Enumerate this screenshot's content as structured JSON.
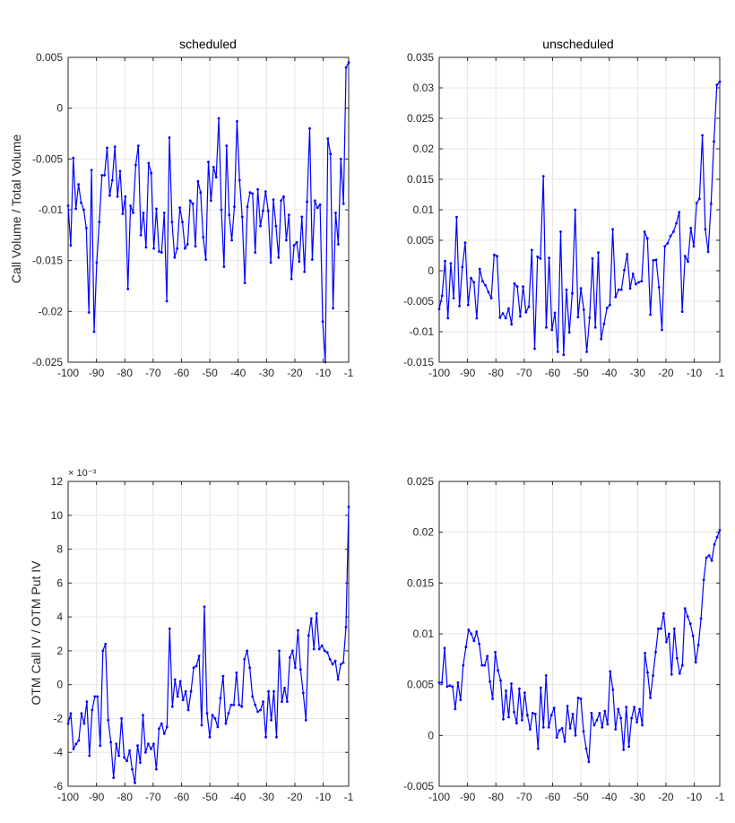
{
  "colors": {
    "series": "#0000ff",
    "grid": "#e6e6e6",
    "axis": "#262626"
  },
  "panels": [
    {
      "title": "scheduled",
      "ylabel": "Call Volume / Total Volume",
      "exponent": ""
    },
    {
      "title": "unscheduled",
      "ylabel": "",
      "exponent": ""
    },
    {
      "title": "",
      "ylabel": "OTM Call IV / OTM Put IV",
      "exponent": "× 10⁻³"
    },
    {
      "title": "",
      "ylabel": "",
      "exponent": ""
    }
  ],
  "chart_data": [
    {
      "type": "line",
      "title": "scheduled",
      "xlabel": "",
      "ylabel": "Call Volume / Total Volume",
      "xlim": [
        -100,
        -1
      ],
      "ylim": [
        -0.025,
        0.005
      ],
      "grid": true,
      "x_ticks": [
        -100,
        -90,
        -80,
        -70,
        -60,
        -50,
        -40,
        -30,
        -20,
        -10,
        -1
      ],
      "x_tick_labels": [
        "-100",
        "-90",
        "-80",
        "-70",
        "-60",
        "-50",
        "-40",
        "-30",
        "-20",
        "-10",
        "-1"
      ],
      "y_ticks": [
        0.005,
        0,
        -0.005,
        -0.01,
        -0.015,
        -0.02,
        -0.025
      ],
      "y_tick_labels": [
        "0.005",
        "0",
        "-0.005",
        "-0.01",
        "-0.015",
        "-0.02",
        "-0.025"
      ],
      "x_start": -100,
      "values": [
        -0.0096,
        -0.0135,
        -0.0049,
        -0.0099,
        -0.0075,
        -0.0093,
        -0.01,
        -0.0118,
        -0.0201,
        -0.0061,
        -0.022,
        -0.0152,
        -0.0112,
        -0.0066,
        -0.0066,
        -0.0039,
        -0.0086,
        -0.0071,
        -0.0038,
        -0.0087,
        -0.0062,
        -0.0104,
        -0.0087,
        -0.0178,
        -0.0096,
        -0.0103,
        -0.0056,
        -0.0037,
        -0.0125,
        -0.0103,
        -0.0137,
        -0.0054,
        -0.0064,
        -0.0138,
        -0.0099,
        -0.0141,
        -0.0142,
        -0.0103,
        -0.019,
        -0.0029,
        -0.0112,
        -0.0147,
        -0.0138,
        -0.0098,
        -0.0112,
        -0.0138,
        -0.0134,
        -0.0091,
        -0.0094,
        -0.0136,
        -0.0072,
        -0.0083,
        -0.0127,
        -0.0149,
        -0.0053,
        -0.0091,
        -0.0058,
        -0.0068,
        -0.001,
        -0.01,
        -0.0156,
        -0.0037,
        -0.0105,
        -0.013,
        -0.0097,
        -0.0013,
        -0.0071,
        -0.0107,
        -0.0172,
        -0.0097,
        -0.0083,
        -0.0084,
        -0.0142,
        -0.008,
        -0.0116,
        -0.0101,
        -0.0082,
        -0.0101,
        -0.0152,
        -0.009,
        -0.0116,
        -0.0147,
        -0.0091,
        -0.0087,
        -0.013,
        -0.0105,
        -0.0168,
        -0.0135,
        -0.0132,
        -0.0151,
        -0.0107,
        -0.0161,
        -0.0092,
        -0.002,
        -0.0149,
        -0.0091,
        -0.0098,
        -0.0095,
        -0.021,
        -0.025,
        -0.003,
        -0.0045,
        -0.0197,
        -0.0103,
        -0.0134,
        -0.005,
        -0.0094,
        0.004,
        0.0045
      ]
    },
    {
      "type": "line",
      "title": "unscheduled",
      "xlabel": "",
      "ylabel": "",
      "xlim": [
        -100,
        -1
      ],
      "ylim": [
        -0.015,
        0.035
      ],
      "grid": true,
      "x_ticks": [
        -100,
        -90,
        -80,
        -70,
        -60,
        -50,
        -40,
        -30,
        -20,
        -10,
        -1
      ],
      "x_tick_labels": [
        "-100",
        "-90",
        "-80",
        "-70",
        "-60",
        "-50",
        "-40",
        "-30",
        "-20",
        "-10",
        "-1"
      ],
      "y_ticks": [
        0.035,
        0.03,
        0.025,
        0.02,
        0.015,
        0.01,
        0.005,
        0,
        -0.005,
        -0.01,
        -0.015
      ],
      "y_tick_labels": [
        "0.035",
        "0.03",
        "0.025",
        "0.02",
        "0.015",
        "0.01",
        "0.005",
        "0",
        "-0.005",
        "-0.01",
        "-0.015"
      ],
      "x_start": -100,
      "values": [
        -0.0063,
        -0.0041,
        0.0016,
        -0.0078,
        0.0012,
        -0.0045,
        0.0088,
        -0.0058,
        0.0006,
        0.0046,
        -0.0056,
        -0.0012,
        -0.0019,
        -0.0078,
        0.0003,
        -0.0017,
        -0.0024,
        -0.0035,
        -0.0045,
        0.0026,
        0.0024,
        -0.0077,
        -0.007,
        -0.0078,
        -0.0062,
        -0.0088,
        -0.0021,
        -0.0026,
        -0.0075,
        -0.0026,
        -0.0068,
        -0.0059,
        0.0034,
        -0.0128,
        0.0023,
        0.002,
        0.0155,
        -0.0093,
        0.0021,
        -0.0097,
        -0.0069,
        -0.0133,
        0.0064,
        -0.0138,
        -0.0031,
        -0.0101,
        -0.0037,
        0.01,
        -0.0076,
        -0.0029,
        -0.0064,
        -0.0133,
        -0.0077,
        0.002,
        -0.0093,
        0.003,
        -0.0112,
        -0.0087,
        -0.0061,
        -0.0056,
        0.0068,
        -0.0043,
        -0.0031,
        -0.0031,
        0.0001,
        0.0027,
        -0.0029,
        -0.0005,
        -0.0022,
        -0.0019,
        -0.0017,
        0.0064,
        0.0053,
        -0.0072,
        0.0017,
        0.0018,
        -0.0027,
        -0.0097,
        0.004,
        0.0045,
        0.0057,
        0.0064,
        0.0078,
        0.0096,
        -0.0067,
        0.0024,
        0.0015,
        0.007,
        0.004,
        0.0111,
        0.0118,
        0.0222,
        0.0068,
        0.0031,
        0.011,
        0.0212,
        0.0305,
        0.031
      ]
    },
    {
      "type": "line",
      "title": "",
      "xlabel": "",
      "ylabel": "OTM Call IV / OTM Put IV",
      "scale_exponent": "× 10⁻³",
      "xlim": [
        -100,
        -1
      ],
      "ylim": [
        -6,
        12
      ],
      "grid": true,
      "x_ticks": [
        -100,
        -90,
        -80,
        -70,
        -60,
        -50,
        -40,
        -30,
        -20,
        -10,
        -1
      ],
      "x_tick_labels": [
        "-100",
        "-90",
        "-80",
        "-70",
        "-60",
        "-50",
        "-40",
        "-30",
        "-20",
        "-10",
        "-1"
      ],
      "y_ticks": [
        12,
        10,
        8,
        6,
        4,
        2,
        0,
        -2,
        -4,
        -6
      ],
      "y_tick_labels": [
        "12",
        "10",
        "8",
        "6",
        "4",
        "2",
        "0",
        "-2",
        "-4",
        "-6"
      ],
      "x_start": -100,
      "values": [
        -2.3,
        -1.7,
        -3.8,
        -3.5,
        -3.3,
        -1.7,
        -2.3,
        -1.0,
        -4.2,
        -1.5,
        -0.7,
        -0.7,
        -3.6,
        2.0,
        2.4,
        -2.1,
        -3.4,
        -5.5,
        -3.5,
        -4.2,
        -2.0,
        -4.3,
        -4.5,
        -3.9,
        -5.0,
        -5.8,
        -3.6,
        -4.6,
        -1.8,
        -4.0,
        -3.5,
        -3.8,
        -3.5,
        -5.0,
        -2.6,
        -2.3,
        -2.9,
        -2.5,
        3.3,
        -1.3,
        0.3,
        -0.7,
        0.2,
        -0.9,
        -0.4,
        -1.5,
        -0.4,
        1.0,
        1.1,
        1.7,
        -2.4,
        4.6,
        -1.7,
        -3.1,
        -1.8,
        -2.0,
        -2.5,
        -0.8,
        0.5,
        -2.3,
        -1.7,
        -1.2,
        -1.2,
        0.7,
        -1.2,
        -1.3,
        1.5,
        2.0,
        1.0,
        -0.7,
        -1.2,
        -1.6,
        -1.5,
        -1.0,
        -3.1,
        -0.4,
        -2.1,
        -0.4,
        -3.1,
        2.0,
        -1.0,
        -0.2,
        -1.0,
        1.6,
        2.0,
        1.0,
        3.2,
        0.9,
        -0.5,
        -2.1,
        2.9,
        3.9,
        2.1,
        4.2,
        2.1,
        2.3,
        2.0,
        1.9,
        1.5,
        1.2,
        1.4,
        0.3,
        1.2,
        1.3,
        3.4,
        10.5
      ]
    },
    {
      "type": "line",
      "title": "",
      "xlabel": "",
      "ylabel": "",
      "xlim": [
        -100,
        -1
      ],
      "ylim": [
        -0.005,
        0.025
      ],
      "grid": true,
      "x_ticks": [
        -100,
        -90,
        -80,
        -70,
        -60,
        -50,
        -40,
        -30,
        -20,
        -10,
        -1
      ],
      "x_tick_labels": [
        "-100",
        "-90",
        "-80",
        "-70",
        "-60",
        "-50",
        "-40",
        "-30",
        "-20",
        "-10",
        "-1"
      ],
      "y_ticks": [
        0.025,
        0.02,
        0.015,
        0.01,
        0.005,
        0,
        -0.005
      ],
      "y_tick_labels": [
        "0.025",
        "0.02",
        "0.015",
        "0.01",
        "0.005",
        "0",
        "-0.005"
      ],
      "x_start": -100,
      "values": [
        0.0052,
        0.0052,
        0.0086,
        0.0048,
        0.0049,
        0.0048,
        0.0026,
        0.0052,
        0.0035,
        0.0069,
        0.0087,
        0.0104,
        0.01,
        0.0093,
        0.0102,
        0.009,
        0.0069,
        0.0069,
        0.0078,
        0.0053,
        0.0036,
        0.0082,
        0.0064,
        0.0054,
        0.0016,
        0.0044,
        0.0018,
        0.0051,
        0.0023,
        0.0012,
        0.0046,
        0.0015,
        0.0042,
        0.002,
        0.0006,
        0.0022,
        0.0021,
        -0.0013,
        0.0047,
        0.0008,
        0.0059,
        0.0008,
        0.002,
        0.0027,
        -0.0002,
        0.0005,
        0.0007,
        -0.0006,
        0.0029,
        0.0007,
        0.0021,
        0.0,
        0.0037,
        0.0036,
        0.0004,
        -0.0013,
        -0.0026,
        0.0022,
        0.001,
        0.0015,
        0.0022,
        0.0008,
        0.0024,
        0.0011,
        0.0063,
        0.0045,
        0.0006,
        0.0026,
        0.0017,
        -0.0014,
        0.0028,
        -0.0011,
        0.0017,
        0.0028,
        0.0013,
        0.0026,
        0.001,
        0.0081,
        0.0062,
        0.0037,
        0.0059,
        0.0082,
        0.0105,
        0.0105,
        0.012,
        0.0092,
        0.01,
        0.006,
        0.0105,
        0.0076,
        0.0061,
        0.0069,
        0.0125,
        0.0117,
        0.011,
        0.0098,
        0.0072,
        0.0089,
        0.0115,
        0.0153,
        0.0175,
        0.0177,
        0.0172,
        0.0188,
        0.0195,
        0.0202
      ]
    }
  ]
}
